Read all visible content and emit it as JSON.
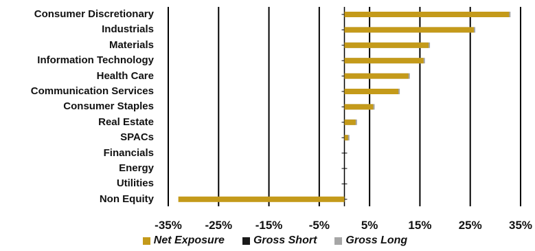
{
  "chart_data": {
    "type": "bar",
    "orientation": "horizontal",
    "categories": [
      "Consumer Discretionary",
      "Industrials",
      "Materials",
      "Information Technology",
      "Health Care",
      "Communication Services",
      "Consumer Staples",
      "Real Estate",
      "SPACs",
      "Financials",
      "Energy",
      "Utilities",
      "Non Equity"
    ],
    "series": [
      {
        "name": "Net Exposure",
        "color": "#C49A1A",
        "values": [
          33,
          26,
          17,
          16,
          13,
          11,
          6,
          2.5,
          1,
          0,
          0,
          0,
          -33
        ]
      },
      {
        "name": "Gross Short",
        "color": "#1a1a1a",
        "values": [
          0,
          0,
          0,
          0,
          0,
          0,
          0,
          0,
          0,
          0,
          0,
          0,
          0
        ]
      },
      {
        "name": "Gross Long",
        "color": "#A6A6A6",
        "values": [
          33,
          26,
          17,
          16,
          13,
          11,
          6,
          2.5,
          1,
          0,
          0,
          0,
          0
        ]
      }
    ],
    "x_ticks": [
      "-35%",
      "-25%",
      "-15%",
      "-5%",
      "5%",
      "15%",
      "25%",
      "35%"
    ],
    "xlim": [
      -35,
      35
    ],
    "grid": true,
    "legend_position": "bottom"
  }
}
